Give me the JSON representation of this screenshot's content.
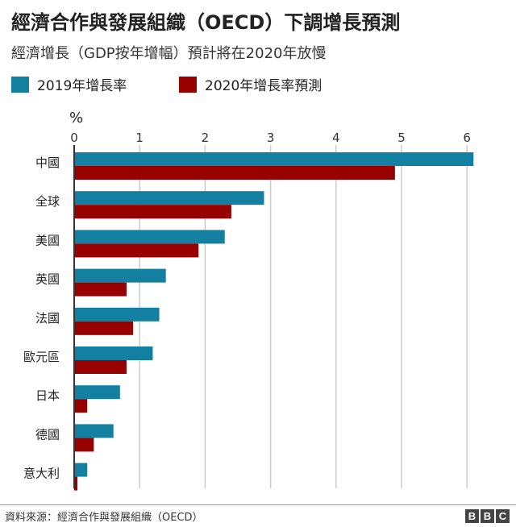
{
  "chart_data": {
    "type": "bar",
    "orientation": "horizontal",
    "title": "經濟合作與發展組織（OECD）下調增長預測",
    "subtitle": "經濟增長（GDP按年增幅）預計將在2020年放慢",
    "xlabel": "%",
    "xlim": [
      0,
      6.2
    ],
    "xticks": [
      "0",
      "1",
      "2",
      "3",
      "4",
      "5",
      "6"
    ],
    "grid": true,
    "legend_position": "top-left",
    "categories": [
      "中國",
      "全球",
      "美國",
      "英國",
      "法國",
      "歐元區",
      "日本",
      "德國",
      "意大利"
    ],
    "series": [
      {
        "name": "2019年增長率",
        "color": "#1380a1",
        "values": [
          6.1,
          2.9,
          2.3,
          1.4,
          1.3,
          1.2,
          0.7,
          0.6,
          0.2
        ]
      },
      {
        "name": "2020年增長率預測",
        "color": "#990000",
        "values": [
          4.9,
          2.4,
          1.9,
          0.8,
          0.9,
          0.8,
          0.2,
          0.3,
          0.05
        ]
      }
    ]
  },
  "footer": {
    "source": "資料來源：經濟合作與發展組織（OECD）",
    "logo": "BBC"
  }
}
